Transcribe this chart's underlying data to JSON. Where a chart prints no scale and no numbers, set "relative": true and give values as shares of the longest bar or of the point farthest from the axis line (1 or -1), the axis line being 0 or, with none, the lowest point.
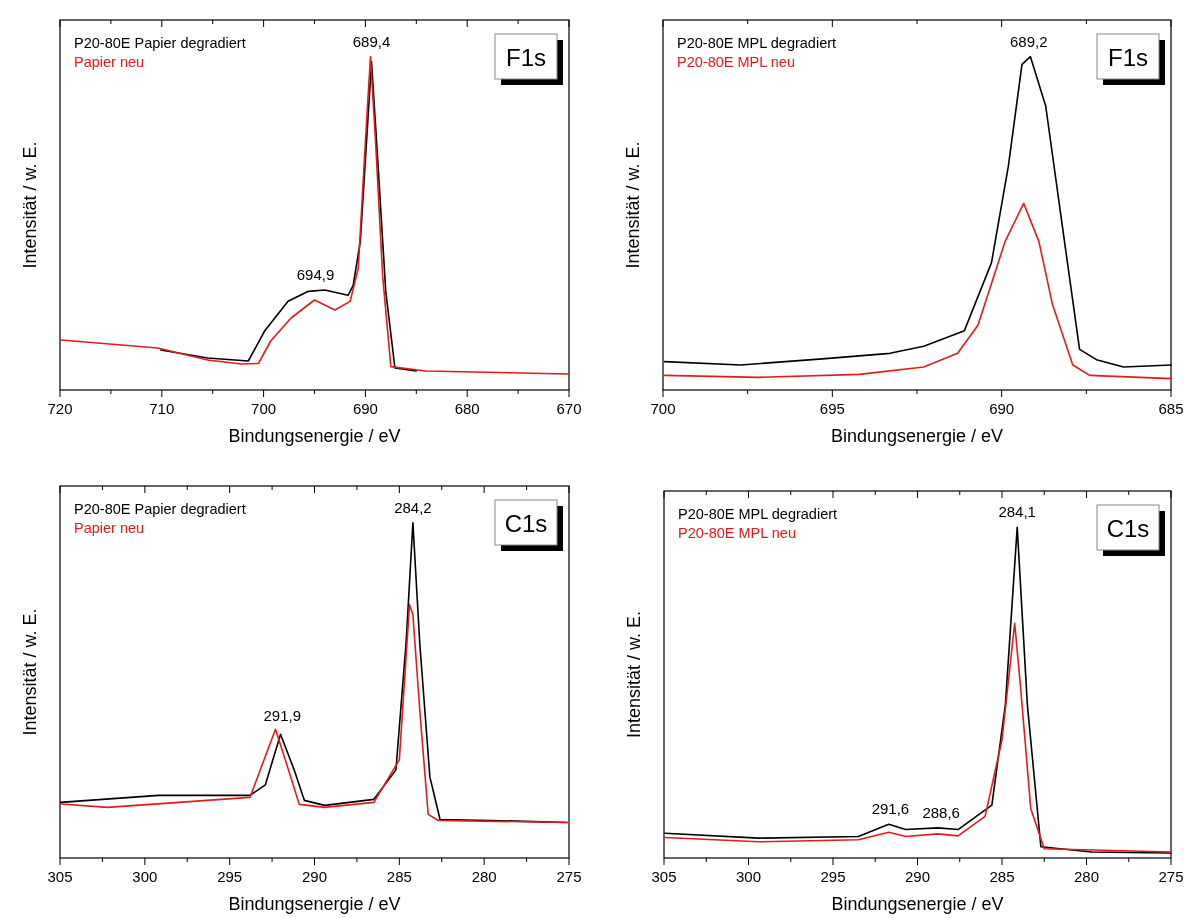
{
  "chart_data": [
    {
      "type": "line",
      "relative": true,
      "xlabel": "Bindungsenergie / eV",
      "ylabel": "Intensität / w. E.",
      "legend": "top left",
      "xlim": [
        720,
        670
      ],
      "xticks": [
        720,
        {
          "value": 715,
          "label": null
        },
        710,
        {
          "value": 705,
          "label": null
        },
        700,
        {
          "value": 695,
          "label": null
        },
        690,
        {
          "value": 685,
          "label": null
        },
        680,
        {
          "value": 675,
          "label": null
        },
        670
      ],
      "annotations": [
        "F1s",
        {
          "text": "689,4",
          "x": 689.4,
          "y": 1
        },
        {
          "text": "694,9",
          "x": 694.9,
          "y": 0.3
        }
      ],
      "series": [
        {
          "name": "P20-80E Papier degradiert",
          "color": "#000000",
          "x": [
            710.1,
            705.5,
            701.5,
            699.9,
            697.6,
            695.6,
            694,
            691.7,
            691.2,
            690.5,
            689.4,
            688.8,
            688,
            687.1,
            685
          ],
          "values": [
            0.12,
            0.096,
            0.087,
            0.177,
            0.266,
            0.296,
            0.3,
            0.284,
            0.314,
            0.446,
            0.985,
            0.695,
            0.296,
            0.066,
            0.057
          ]
        },
        {
          "name": "Papier neu",
          "color": "#e41a1c",
          "x": [
            719.9,
            710.4,
            705.5,
            702.2,
            700.5,
            699.3,
            697.3,
            695,
            693,
            691.5,
            690.7,
            690,
            689.5,
            689,
            688.3,
            687.5,
            684.1,
            670.1
          ],
          "values": [
            0.15,
            0.126,
            0.09,
            0.078,
            0.08,
            0.147,
            0.216,
            0.27,
            0.24,
            0.266,
            0.365,
            0.745,
            1,
            0.745,
            0.34,
            0.07,
            0.057,
            0.048
          ]
        }
      ]
    },
    {
      "type": "line",
      "relative": true,
      "xlabel": "Bindungsenergie / eV",
      "ylabel": "Intensität / w. E.",
      "legend": "top left",
      "xlim": [
        700,
        685
      ],
      "xticks": [
        700,
        {
          "value": 697.5,
          "label": null
        },
        695,
        {
          "value": 692.5,
          "label": null
        },
        690,
        {
          "value": 687.5,
          "label": null
        },
        685
      ],
      "annotations": [
        "F1s",
        {
          "text": "689,2",
          "x": 689.2,
          "y": 1
        }
      ],
      "series": [
        {
          "name": "P20-80E MPL degradiert",
          "color": "#000000",
          "x": [
            699.95,
            697.7,
            695.2,
            693.3,
            692.3,
            691.1,
            690.3,
            689.8,
            689.4,
            689.15,
            688.7,
            688.1,
            687.7,
            687.2,
            686.4,
            685
          ],
          "values": [
            0.085,
            0.075,
            0.094,
            0.11,
            0.131,
            0.178,
            0.382,
            0.673,
            0.977,
            1,
            0.852,
            0.413,
            0.122,
            0.091,
            0.069,
            0.075
          ]
        },
        {
          "name": "P20-80E MPL neu",
          "color": "#e41a1c",
          "x": [
            699.95,
            697.2,
            694.2,
            692.3,
            691.3,
            690.7,
            689.9,
            689.35,
            688.9,
            688.5,
            687.9,
            687.4,
            685
          ],
          "values": [
            0.044,
            0.038,
            0.047,
            0.069,
            0.11,
            0.194,
            0.445,
            0.56,
            0.445,
            0.257,
            0.075,
            0.044,
            0.034
          ]
        }
      ]
    },
    {
      "type": "line",
      "relative": true,
      "xlabel": "Bindungsenergie / eV",
      "ylabel": "Intensität / w. E.",
      "legend": "top left",
      "xlim": [
        305,
        275
      ],
      "xticks": [
        305,
        {
          "value": 302.5,
          "label": null
        },
        300,
        {
          "value": 297.5,
          "label": null
        },
        295,
        {
          "value": 292.5,
          "label": null
        },
        290,
        {
          "value": 287.5,
          "label": null
        },
        285,
        {
          "value": 282.5,
          "label": null
        },
        280,
        {
          "value": 277.5,
          "label": null
        },
        275
      ],
      "annotations": [
        "C1s",
        {
          "text": "284,2",
          "x": 284.2,
          "y": 1
        },
        {
          "text": "291,9",
          "x": 291.9,
          "y": 0.38
        }
      ],
      "series": [
        {
          "name": "P20-80E Papier degradiert",
          "color": "#000000",
          "x": [
            304.96,
            299.2,
            293.8,
            292.9,
            292,
            291.2,
            290.6,
            289.4,
            286.5,
            285.2,
            284.6,
            284.2,
            283.8,
            283.2,
            282.6,
            279.6,
            275.1
          ],
          "values": [
            0.166,
            0.187,
            0.187,
            0.218,
            0.369,
            0.263,
            0.172,
            0.157,
            0.175,
            0.263,
            0.644,
            1,
            0.644,
            0.242,
            0.115,
            0.112,
            0.106
          ]
        },
        {
          "name": "Papier neu",
          "color": "#e41a1c",
          "x": [
            304.96,
            302.2,
            293.8,
            292.3,
            291.4,
            290.9,
            289.4,
            286.5,
            285,
            284.4,
            284.2,
            283.8,
            283.3,
            282.7,
            275.1
          ],
          "values": [
            0.161,
            0.151,
            0.181,
            0.384,
            0.242,
            0.16,
            0.151,
            0.166,
            0.293,
            0.756,
            0.726,
            0.444,
            0.13,
            0.112,
            0.106
          ]
        }
      ]
    },
    {
      "type": "line",
      "relative": true,
      "xlabel": "Bindungsenergie / eV",
      "ylabel": "Intensität / w. E.",
      "legend": "top left",
      "xlim": [
        305,
        275
      ],
      "xticks": [
        305,
        {
          "value": 302.5,
          "label": null
        },
        300,
        {
          "value": 297.5,
          "label": null
        },
        295,
        {
          "value": 292.5,
          "label": null
        },
        290,
        {
          "value": 287.5,
          "label": null
        },
        285,
        {
          "value": 282.5,
          "label": null
        },
        280,
        {
          "value": 277.5,
          "label": null
        },
        275
      ],
      "annotations": [
        "C1s",
        {
          "text": "284,1",
          "x": 284.1,
          "y": 1
        },
        {
          "text": "291,6",
          "x": 291.6,
          "y": 0.102
        },
        {
          "text": "288,6",
          "x": 288.6,
          "y": 0.091
        }
      ],
      "series": [
        {
          "name": "P20-80E MPL degradiert",
          "color": "#000000",
          "x": [
            304.96,
            299.4,
            293.5,
            291.7,
            290.7,
            288.8,
            287.6,
            285.6,
            284.8,
            284.1,
            283.5,
            282.7,
            279.7,
            275
          ],
          "values": [
            0.075,
            0.06,
            0.065,
            0.102,
            0.086,
            0.091,
            0.086,
            0.16,
            0.464,
            1,
            0.464,
            0.034,
            0.018,
            0.015
          ]
        },
        {
          "name": "P20-80E MPL neu",
          "color": "#e41a1c",
          "x": [
            304.96,
            299.4,
            293.5,
            291.7,
            290.7,
            288.8,
            287.6,
            286,
            285,
            284.25,
            283.9,
            283.3,
            282.5,
            275
          ],
          "values": [
            0.062,
            0.049,
            0.055,
            0.078,
            0.065,
            0.073,
            0.067,
            0.126,
            0.357,
            0.71,
            0.516,
            0.15,
            0.028,
            0.018
          ]
        }
      ]
    }
  ]
}
